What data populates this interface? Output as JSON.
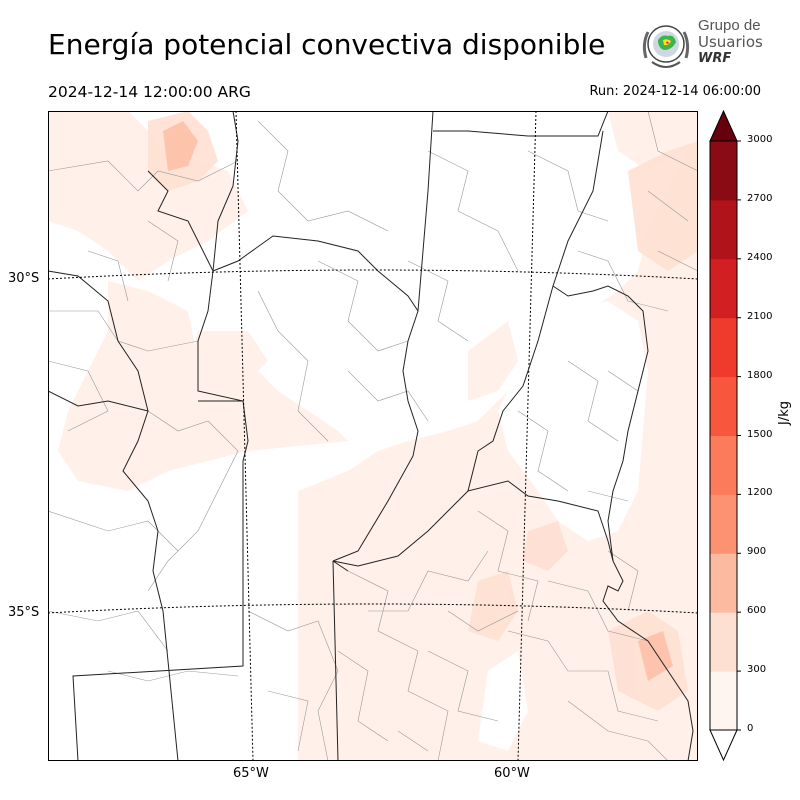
{
  "header": {
    "title": "Energía potencial convectiva disponible",
    "valid_time": "2024-12-14 12:00:00 ARG",
    "run_time": "Run: 2024-12-14 06:00:00"
  },
  "logo": {
    "line1": "Grupo de",
    "line2": "Usuarios",
    "line3": "WRF",
    "icon": "wrf-globe-logo-icon"
  },
  "map": {
    "lat_labels": [
      "30°S",
      "35°S"
    ],
    "lon_labels": [
      "65°W",
      "60°W"
    ],
    "shading_colors": [
      "#fff5f0",
      "#fee0d2",
      "#fcbba1"
    ]
  },
  "colorbar": {
    "unit": "J/kg",
    "ticks": [
      "0",
      "300",
      "600",
      "900",
      "1200",
      "1500",
      "1800",
      "2100",
      "2400",
      "2700",
      "3000"
    ],
    "colors": [
      "#fff5f0",
      "#fee0d2",
      "#fcbba1",
      "#fc9272",
      "#fb7b5b",
      "#f9573d",
      "#ef3b2c",
      "#d11f22",
      "#b0141a",
      "#8b0b14",
      "#67000d"
    ]
  }
}
